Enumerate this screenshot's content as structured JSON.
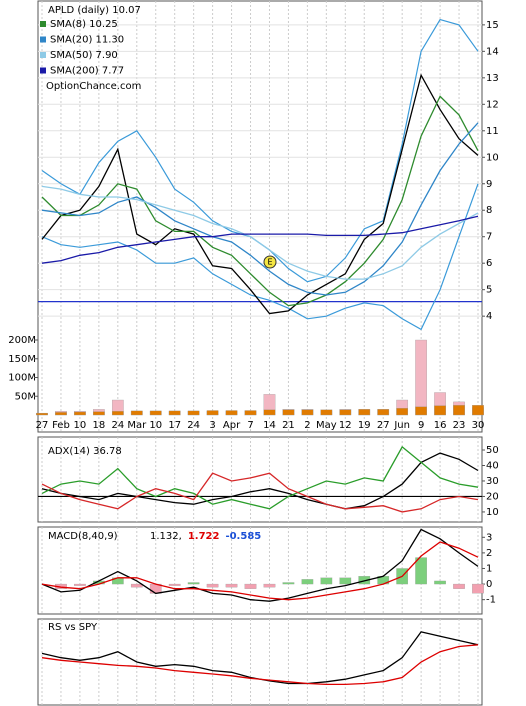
{
  "chart_data": [
    {
      "type": "line",
      "title": "APLD (daily) 10.07",
      "annotation": "OptionChance.com",
      "marker_text": "E",
      "legend": "top-left",
      "axis_side": "right",
      "grid": true,
      "categories": [
        "27",
        "Feb",
        "10",
        "18",
        "24",
        "Mar",
        "10",
        "17",
        "24",
        "3",
        "Apr",
        "7",
        "14",
        "21",
        "2",
        "May",
        "12",
        "19",
        "27",
        "Jun",
        "9",
        "16",
        "23",
        "30"
      ],
      "ylim": [
        3.1,
        15.75
      ],
      "yticks": [
        4,
        5,
        6,
        7,
        8,
        9,
        10,
        11,
        12,
        13,
        14,
        15
      ],
      "series": [
        {
          "color": "#000000",
          "values": [
            6.9,
            7.8,
            8.0,
            8.9,
            10.3,
            7.1,
            6.7,
            7.3,
            7.1,
            5.9,
            5.8,
            5.0,
            4.1,
            4.2,
            4.8,
            5.2,
            5.6,
            6.9,
            7.5,
            10.3,
            13.1,
            11.8,
            10.7,
            10.07
          ]
        },
        {
          "name": "SMA(8) 10.25",
          "color": "#2e8b2e",
          "values": [
            8.5,
            7.8,
            7.8,
            8.2,
            9.0,
            8.8,
            7.6,
            7.2,
            7.2,
            6.6,
            6.3,
            5.6,
            4.9,
            4.4,
            4.5,
            4.8,
            5.3,
            6.0,
            6.9,
            8.4,
            10.8,
            12.3,
            11.6,
            10.25
          ]
        },
        {
          "name": "SMA(20) 11.30",
          "color": "#2f86c8",
          "values": [
            8.0,
            7.9,
            7.8,
            7.9,
            8.3,
            8.5,
            8.1,
            7.6,
            7.3,
            7.0,
            6.8,
            6.3,
            5.7,
            5.2,
            4.9,
            4.8,
            4.9,
            5.3,
            5.9,
            6.8,
            8.2,
            9.5,
            10.5,
            11.3
          ]
        },
        {
          "name": "SMA(50) 7.90",
          "color": "#8ecae6",
          "values": [
            8.9,
            8.8,
            8.6,
            8.5,
            8.5,
            8.4,
            8.2,
            8.0,
            7.8,
            7.5,
            7.3,
            7.0,
            6.5,
            6.0,
            5.7,
            5.5,
            5.4,
            5.4,
            5.6,
            5.9,
            6.6,
            7.1,
            7.5,
            7.9
          ]
        },
        {
          "name": "SMA(200) 7.77",
          "color": "#1a1aa8",
          "values": [
            6.0,
            6.1,
            6.3,
            6.4,
            6.6,
            6.7,
            6.8,
            6.9,
            7.0,
            7.0,
            7.1,
            7.1,
            7.1,
            7.1,
            7.1,
            7.05,
            7.05,
            7.05,
            7.1,
            7.15,
            7.3,
            7.45,
            7.6,
            7.77
          ]
        }
      ],
      "bands": {
        "color": "#3a9ad9",
        "upper": [
          9.5,
          9.0,
          8.6,
          9.8,
          10.6,
          11.0,
          10.0,
          8.8,
          8.3,
          7.6,
          7.2,
          7.0,
          6.5,
          5.8,
          5.3,
          5.5,
          6.2,
          7.3,
          7.6,
          10.5,
          14.0,
          15.2,
          15.0,
          14.0
        ],
        "lower": [
          7.0,
          6.7,
          6.6,
          6.7,
          6.8,
          6.5,
          6.0,
          6.0,
          6.2,
          5.6,
          5.2,
          4.8,
          4.6,
          4.3,
          3.9,
          4.0,
          4.3,
          4.5,
          4.4,
          3.9,
          3.5,
          5.0,
          7.0,
          9.0
        ]
      },
      "hlines": [
        {
          "value": 4.55,
          "color": "#2233cc"
        }
      ]
    },
    {
      "type": "bar",
      "axis_side": "left",
      "ylim": [
        0,
        200000000
      ],
      "yticks": [
        {
          "value": 50000000,
          "label": "50M"
        },
        {
          "value": 100000000,
          "label": "100M"
        },
        {
          "value": 150000000,
          "label": "150M"
        },
        {
          "value": 200000000,
          "label": "200M"
        }
      ],
      "series": [
        {
          "type": "bar",
          "color": "#f2b6c2",
          "values": [
            5000000,
            10000000,
            10000000,
            15000000,
            40000000,
            10000000,
            10000000,
            10000000,
            10000000,
            10000000,
            10000000,
            10000000,
            55000000,
            15000000,
            15000000,
            12000000,
            15000000,
            15000000,
            15000000,
            40000000,
            200000000,
            60000000,
            35000000,
            20000000
          ]
        },
        {
          "color": "#e07b00",
          "values": [
            5000000,
            7000000,
            8000000,
            9000000,
            10000000,
            11000000,
            11000000,
            11000000,
            11000000,
            12000000,
            12000000,
            12000000,
            14000000,
            14000000,
            14000000,
            14000000,
            14000000,
            15000000,
            15000000,
            18000000,
            22000000,
            25000000,
            26000000,
            26000000
          ]
        }
      ]
    },
    {
      "type": "line",
      "title": "ADX(14) 36.78",
      "axis_side": "right",
      "ylim": [
        3.5,
        58.4
      ],
      "yticks": [
        10,
        20,
        30,
        40,
        50
      ],
      "hlines": [
        {
          "value": 20,
          "color": "#000000"
        }
      ],
      "series": [
        {
          "color": "#000000",
          "values": [
            25,
            22,
            20,
            18,
            22,
            20,
            18,
            16,
            15,
            18,
            20,
            23,
            25,
            22,
            18,
            15,
            12,
            14,
            20,
            28,
            42,
            48,
            44,
            36.78
          ]
        },
        {
          "color": "#2a9d2a",
          "values": [
            22,
            28,
            30,
            28,
            38,
            25,
            20,
            25,
            22,
            15,
            18,
            15,
            12,
            20,
            25,
            30,
            28,
            32,
            30,
            52,
            42,
            32,
            28,
            26
          ]
        },
        {
          "color": "#d62728",
          "values": [
            28,
            22,
            18,
            15,
            12,
            20,
            25,
            22,
            18,
            35,
            30,
            32,
            35,
            25,
            20,
            15,
            12,
            13,
            14,
            10,
            12,
            18,
            20,
            18
          ]
        }
      ]
    },
    {
      "type": "line",
      "title": "MACD(8,40,9)",
      "readouts": [
        {
          "text": "1.132,",
          "color": "#000000"
        },
        {
          "text": "1.722",
          "color": "#dd0000"
        },
        {
          "text": "-0.585",
          "color": "#1a4fd6"
        }
      ],
      "axis_side": "right",
      "ylim": [
        -1.92,
        3.66
      ],
      "yticks": [
        -1,
        0,
        1,
        2,
        3
      ],
      "series": [
        {
          "type": "bar",
          "color": "#7ccf7c",
          "negative_color": "#f2a0b0",
          "values": [
            0,
            -0.3,
            -0.1,
            0.2,
            0.4,
            -0.2,
            -0.6,
            -0.1,
            0.1,
            -0.2,
            -0.2,
            -0.3,
            -0.2,
            0.1,
            0.3,
            0.4,
            0.4,
            0.5,
            0.5,
            1.0,
            1.7,
            0.2,
            -0.3,
            -0.585
          ]
        },
        {
          "color": "#000000",
          "values": [
            0,
            -0.5,
            -0.4,
            0.2,
            0.8,
            0.2,
            -0.6,
            -0.4,
            -0.2,
            -0.6,
            -0.7,
            -1.0,
            -1.1,
            -0.9,
            -0.6,
            -0.3,
            -0.1,
            0.2,
            0.5,
            1.5,
            3.5,
            2.9,
            2.0,
            1.132
          ]
        },
        {
          "color": "#dd0000",
          "values": [
            0,
            -0.2,
            -0.3,
            0,
            0.4,
            0.4,
            0,
            -0.3,
            -0.3,
            -0.4,
            -0.5,
            -0.7,
            -0.9,
            -1.0,
            -0.9,
            -0.7,
            -0.5,
            -0.3,
            0,
            0.5,
            1.8,
            2.7,
            2.3,
            1.722
          ]
        }
      ]
    },
    {
      "type": "line",
      "title": "RS vs SPY",
      "ylim": [
        0,
        100
      ],
      "series": [
        {
          "color": "#000000",
          "values": [
            60,
            55,
            52,
            55,
            62,
            50,
            45,
            47,
            45,
            40,
            38,
            32,
            28,
            25,
            25,
            27,
            30,
            35,
            40,
            55,
            85,
            80,
            75,
            70
          ]
        },
        {
          "color": "#dd0000",
          "values": [
            55,
            52,
            50,
            48,
            46,
            45,
            43,
            40,
            38,
            36,
            34,
            31,
            29,
            27,
            25,
            24,
            24,
            25,
            27,
            32,
            50,
            62,
            68,
            70
          ]
        }
      ]
    }
  ]
}
